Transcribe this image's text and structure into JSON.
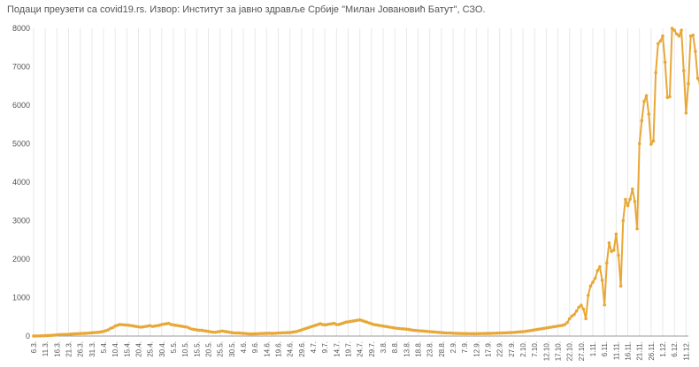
{
  "source_note": "Подаци преузети са covid19.rs. Извор: Институт за јавно здравље Србије \"Милан Јовановић Батут\", СЗО.",
  "colors": {
    "series": "#e8a838",
    "grid": "#e8e8e8",
    "axis": "#999999",
    "text": "#555555"
  },
  "chart_data": {
    "type": "line",
    "title": "",
    "xlabel": "",
    "ylabel": "",
    "ylim": [
      0,
      8000
    ],
    "yticks": [
      0,
      1000,
      2000,
      3000,
      4000,
      5000,
      6000,
      7000,
      8000
    ],
    "grid": "vertical lines at every x tick",
    "legend": "none",
    "x_tick_labels": [
      "6.3.",
      "11.3.",
      "16.3.",
      "21.3.",
      "26.3.",
      "31.3.",
      "5.4.",
      "10.4.",
      "15.4.",
      "20.4.",
      "25.4.",
      "30.4.",
      "5.5.",
      "10.5.",
      "15.5.",
      "20.5.",
      "25.5.",
      "30.5.",
      "4.6.",
      "9.6.",
      "14.6.",
      "19.6.",
      "24.6.",
      "29.6.",
      "4.7.",
      "9.7.",
      "14.7.",
      "19.7.",
      "24.7.",
      "29.7.",
      "3.8.",
      "8.8.",
      "13.8.",
      "18.8.",
      "23.8.",
      "28.8.",
      "2.9.",
      "7.9.",
      "12.9.",
      "17.9.",
      "22.9.",
      "27.9.",
      "2.10.",
      "7.10.",
      "12.10.",
      "17.10.",
      "22.10.",
      "27.10.",
      "1.11.",
      "6.11.",
      "11.11.",
      "16.11.",
      "21.11.",
      "26.11.",
      "1.12.",
      "6.12.",
      "11.12."
    ],
    "x_range_days": [
      0,
      281
    ],
    "x_step_days": 1,
    "series": [
      {
        "values": [
          1,
          2,
          3,
          5,
          8,
          10,
          12,
          15,
          20,
          25,
          30,
          35,
          38,
          40,
          42,
          45,
          50,
          55,
          60,
          62,
          65,
          68,
          70,
          75,
          80,
          85,
          90,
          95,
          100,
          110,
          120,
          140,
          160,
          200,
          220,
          260,
          280,
          300,
          295,
          290,
          285,
          280,
          270,
          260,
          250,
          240,
          230,
          240,
          250,
          260,
          270,
          250,
          260,
          270,
          280,
          300,
          310,
          320,
          330,
          300,
          290,
          280,
          270,
          260,
          250,
          240,
          230,
          200,
          180,
          170,
          160,
          150,
          150,
          140,
          130,
          120,
          110,
          100,
          100,
          110,
          120,
          130,
          120,
          110,
          100,
          90,
          80,
          80,
          80,
          75,
          70,
          65,
          60,
          55,
          55,
          60,
          60,
          65,
          65,
          70,
          70,
          75,
          70,
          70,
          75,
          80,
          80,
          85,
          85,
          90,
          90,
          100,
          110,
          120,
          140,
          160,
          180,
          200,
          220,
          240,
          260,
          280,
          300,
          320,
          300,
          290,
          300,
          310,
          320,
          330,
          300,
          300,
          320,
          340,
          360,
          370,
          380,
          390,
          400,
          410,
          420,
          400,
          380,
          360,
          340,
          320,
          300,
          290,
          280,
          270,
          260,
          250,
          240,
          230,
          220,
          210,
          200,
          195,
          190,
          185,
          180,
          170,
          160,
          150,
          145,
          140,
          135,
          130,
          125,
          120,
          115,
          110,
          105,
          100,
          95,
          90,
          85,
          80,
          80,
          78,
          75,
          72,
          70,
          68,
          66,
          65,
          64,
          63,
          62,
          62,
          63,
          64,
          65,
          66,
          67,
          68,
          70,
          72,
          74,
          76,
          78,
          80,
          82,
          85,
          88,
          90,
          95,
          100,
          105,
          110,
          115,
          120,
          130,
          140,
          150,
          160,
          170,
          180,
          190,
          200,
          210,
          220,
          230,
          240,
          250,
          260,
          270,
          280,
          300,
          350,
          450,
          520,
          560,
          650,
          750,
          800,
          700,
          450,
          1060,
          1300,
          1400,
          1500,
          1700,
          1800,
          1450,
          810,
          1900,
          2420,
          2200,
          2230,
          2650,
          2100,
          1300,
          3000,
          3550,
          3390,
          3560,
          3820,
          3500,
          2790,
          5000,
          5600,
          6100,
          6250,
          5770,
          4990,
          5070,
          6850,
          7600,
          7670,
          7800,
          7120,
          6200,
          6220,
          8000,
          7950,
          7850,
          7800,
          7950,
          6900,
          5800,
          6560,
          7800,
          7820,
          7400,
          6700,
          6570,
          6520
        ]
      }
    ]
  }
}
